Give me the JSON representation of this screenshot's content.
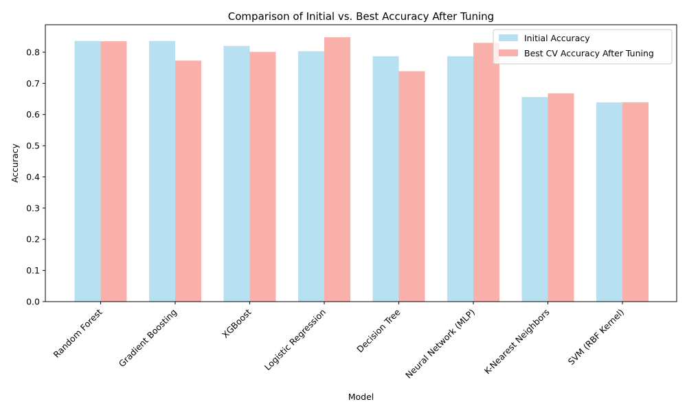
{
  "chart_data": {
    "type": "bar",
    "title": "Comparison of Initial vs. Best Accuracy After Tuning",
    "xlabel": "Model",
    "ylabel": "Accuracy",
    "categories": [
      "Random Forest",
      "Gradient Boosting",
      "XGBoost",
      "Logistic Regression",
      "Decision Tree",
      "Neural Network (MLP)",
      "K-Nearest Neighbors",
      "SVM (RBF Kernel)"
    ],
    "series": [
      {
        "name": "Initial Accuracy",
        "color": "#b7e0f1",
        "values": [
          0.836,
          0.836,
          0.82,
          0.803,
          0.787,
          0.787,
          0.656,
          0.639
        ]
      },
      {
        "name": "Best CV Accuracy After Tuning",
        "color": "#fbb1ab",
        "values": [
          0.835,
          0.773,
          0.801,
          0.848,
          0.739,
          0.83,
          0.668,
          0.639
        ]
      }
    ],
    "ylim": [
      0,
      0.888
    ],
    "yticks": [
      "0.0",
      "0.1",
      "0.2",
      "0.3",
      "0.4",
      "0.5",
      "0.6",
      "0.7",
      "0.8"
    ],
    "grid": false,
    "legend_position": "top-right"
  }
}
